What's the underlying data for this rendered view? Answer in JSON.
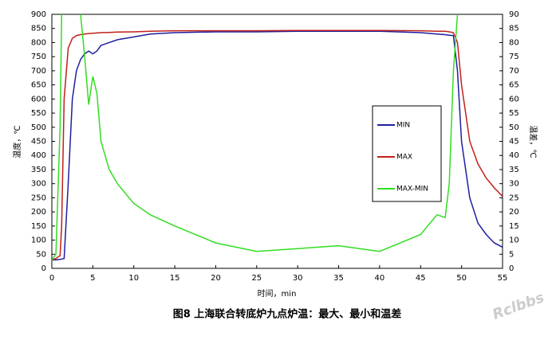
{
  "chart_data": {
    "type": "line",
    "caption": "图8  上海联合转底炉九点炉温：最大、最小和温差",
    "x_label": "时间，min",
    "y_label": "温度，℃",
    "y2_label": "温差，℃",
    "x": [
      0,
      0.5,
      1,
      1.2,
      1.5,
      2,
      2.5,
      3,
      3.5,
      4,
      4.5,
      5,
      5.5,
      6,
      7,
      8,
      10,
      12,
      15,
      20,
      25,
      30,
      35,
      40,
      45,
      47,
      48,
      48.5,
      49,
      49.5,
      50,
      51,
      52,
      53,
      54,
      55
    ],
    "series": [
      {
        "name": "MIN",
        "color": "#1f1fa0",
        "values": [
          30,
          30,
          32,
          33,
          35,
          300,
          600,
          700,
          740,
          760,
          770,
          760,
          770,
          790,
          800,
          810,
          820,
          830,
          835,
          838,
          838,
          840,
          840,
          840,
          835,
          830,
          828,
          826,
          825,
          700,
          450,
          250,
          160,
          120,
          90,
          75
        ]
      },
      {
        "name": "MAX",
        "color": "#c0201a",
        "values": [
          30,
          35,
          45,
          150,
          600,
          780,
          815,
          825,
          828,
          830,
          832,
          833,
          834,
          835,
          836,
          837,
          838,
          840,
          842,
          842,
          842,
          843,
          843,
          843,
          842,
          840,
          840,
          838,
          835,
          800,
          650,
          450,
          370,
          320,
          285,
          255
        ]
      },
      {
        "name": "MAX-MIN",
        "color": "#33dd22",
        "axis": "y2",
        "values": [
          3,
          5,
          50,
          90,
          null,
          null,
          null,
          null,
          90,
          75,
          58,
          68,
          62,
          45,
          35,
          30,
          23,
          19,
          15,
          9,
          6,
          7,
          8,
          6,
          12,
          19,
          18,
          30,
          70,
          90,
          null,
          null,
          null,
          null,
          null,
          null
        ]
      }
    ],
    "xlim": [
      0,
      55
    ],
    "xticks": [
      0,
      5,
      10,
      15,
      20,
      25,
      30,
      35,
      40,
      45,
      50,
      55
    ],
    "ylim": [
      0,
      900
    ],
    "yticks": [
      0,
      50,
      100,
      150,
      200,
      250,
      300,
      350,
      400,
      450,
      500,
      550,
      600,
      650,
      700,
      750,
      800,
      850,
      900
    ],
    "y2lim": [
      0,
      90
    ],
    "y2ticks": [
      0,
      5,
      10,
      15,
      20,
      25,
      30,
      35,
      40,
      45,
      50,
      55,
      60,
      65,
      70,
      75,
      80,
      85,
      90
    ],
    "grid": false
  },
  "watermark": "Rclbbs"
}
